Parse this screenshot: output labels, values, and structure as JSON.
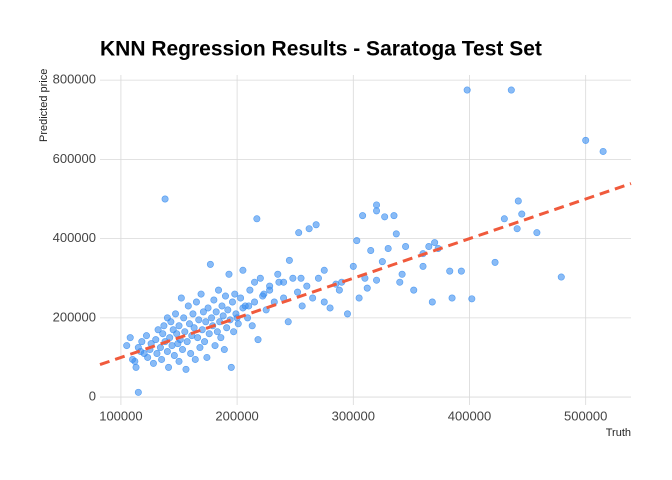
{
  "chart_data": {
    "type": "scatter",
    "title": "KNN Regression Results - Saratoga Test Set",
    "x_label": "Truth",
    "y_label": "Predicted price",
    "xlim": [
      82000,
      539000
    ],
    "ylim": [
      -20000,
      813000
    ],
    "xticks": [
      100000,
      200000,
      300000,
      400000,
      500000
    ],
    "yticks": [
      0,
      200000,
      400000,
      600000,
      800000
    ],
    "grid": true,
    "reference_line": {
      "slope": 1,
      "intercept": 0,
      "color": "#f05a3c",
      "dashed": true
    },
    "series": [
      {
        "color": "#3a8ef0",
        "x": [
          398000,
          436000,
          138000,
          500000,
          515000,
          217000,
          479000,
          115000,
          442000,
          430000,
          445000,
          458000,
          422000,
          441000,
          402000,
          383000,
          393000,
          368000,
          385000,
          370000,
          365000,
          360000,
          352000,
          320000,
          320000,
          308000,
          335000,
          327000,
          337000,
          330000,
          315000,
          303000,
          325000,
          342000,
          320000,
          300000,
          310000,
          290000,
          285000,
          275000,
          268000,
          262000,
          253000,
          245000,
          255000,
          235000,
          240000,
          228000,
          223000,
          215000,
          210000,
          205000,
          200000,
          105000,
          108000,
          110000,
          112000,
          113000,
          115000,
          117000,
          118000,
          120000,
          122000,
          123000,
          125000,
          126000,
          128000,
          130000,
          131000,
          132000,
          134000,
          135000,
          136000,
          137000,
          138000,
          140000,
          140000,
          141000,
          142000,
          143000,
          144000,
          145000,
          146000,
          147000,
          148000,
          149000,
          150000,
          150000,
          151000,
          152000,
          153000,
          154000,
          155000,
          156000,
          157000,
          158000,
          159000,
          160000,
          161000,
          162000,
          163000,
          164000,
          165000,
          166000,
          167000,
          168000,
          169000,
          170000,
          171000,
          172000,
          173000,
          174000,
          175000,
          176000,
          177000,
          178000,
          179000,
          180000,
          181000,
          182000,
          183000,
          184000,
          185000,
          186000,
          187000,
          188000,
          189000,
          190000,
          191000,
          192000,
          193000,
          194000,
          195000,
          196000,
          197000,
          198000,
          199000,
          201000,
          203000,
          205000,
          207000,
          209000,
          211000,
          213000,
          215000,
          218000,
          220000,
          222000,
          225000,
          228000,
          232000,
          236000,
          240000,
          244000,
          248000,
          252000,
          256000,
          260000,
          265000,
          270000,
          275000,
          280000,
          288000,
          295000,
          305000,
          312000,
          340000,
          345000,
          360000,
          373000
        ],
        "values": [
          775000,
          775000,
          500000,
          648000,
          620000,
          450000,
          303000,
          12000,
          495000,
          450000,
          462000,
          415000,
          340000,
          425000,
          248000,
          318000,
          318000,
          240000,
          250000,
          390000,
          380000,
          362000,
          270000,
          485000,
          470000,
          458000,
          458000,
          455000,
          412000,
          375000,
          370000,
          395000,
          342000,
          310000,
          295000,
          330000,
          300000,
          290000,
          285000,
          320000,
          435000,
          425000,
          415000,
          345000,
          300000,
          310000,
          290000,
          280000,
          260000,
          290000,
          230000,
          225000,
          200000,
          130000,
          150000,
          95000,
          90000,
          75000,
          125000,
          115000,
          140000,
          110000,
          155000,
          100000,
          120000,
          135000,
          85000,
          145000,
          110000,
          170000,
          125000,
          95000,
          160000,
          180000,
          140000,
          200000,
          115000,
          75000,
          150000,
          190000,
          130000,
          170000,
          105000,
          210000,
          160000,
          135000,
          180000,
          90000,
          145000,
          250000,
          120000,
          200000,
          165000,
          70000,
          140000,
          230000,
          185000,
          110000,
          155000,
          210000,
          175000,
          95000,
          240000,
          150000,
          195000,
          125000,
          260000,
          170000,
          215000,
          140000,
          190000,
          100000,
          225000,
          160000,
          335000,
          200000,
          180000,
          245000,
          130000,
          215000,
          165000,
          270000,
          190000,
          150000,
          230000,
          205000,
          120000,
          255000,
          175000,
          220000,
          310000,
          195000,
          75000,
          240000,
          165000,
          260000,
          210000,
          185000,
          250000,
          320000,
          230000,
          200000,
          270000,
          180000,
          240000,
          145000,
          300000,
          255000,
          220000,
          270000,
          240000,
          290000,
          250000,
          190000,
          300000,
          265000,
          230000,
          280000,
          250000,
          300000,
          240000,
          225000,
          270000,
          210000,
          250000,
          275000,
          290000,
          380000,
          330000,
          375000
        ]
      }
    ]
  }
}
